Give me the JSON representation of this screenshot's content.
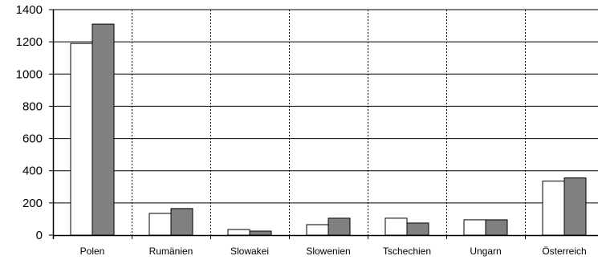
{
  "chart_data": {
    "type": "bar",
    "categories": [
      "Polen",
      "Rumänien",
      "Slowakei",
      "Slowenien",
      "Tschechien",
      "Ungarn",
      "Österreich"
    ],
    "series": [
      {
        "values": [
          1190,
          135,
          35,
          65,
          105,
          95,
          335
        ],
        "color": "#ffffff"
      },
      {
        "values": [
          1310,
          165,
          25,
          105,
          75,
          95,
          355
        ],
        "color": "#808080"
      }
    ],
    "ylim": [
      0,
      1400
    ],
    "yticks": [
      0,
      200,
      400,
      600,
      800,
      1000,
      1200,
      1400
    ],
    "grid": {
      "horizontal": "solid",
      "vertical": "dashed"
    },
    "legend": "none"
  }
}
